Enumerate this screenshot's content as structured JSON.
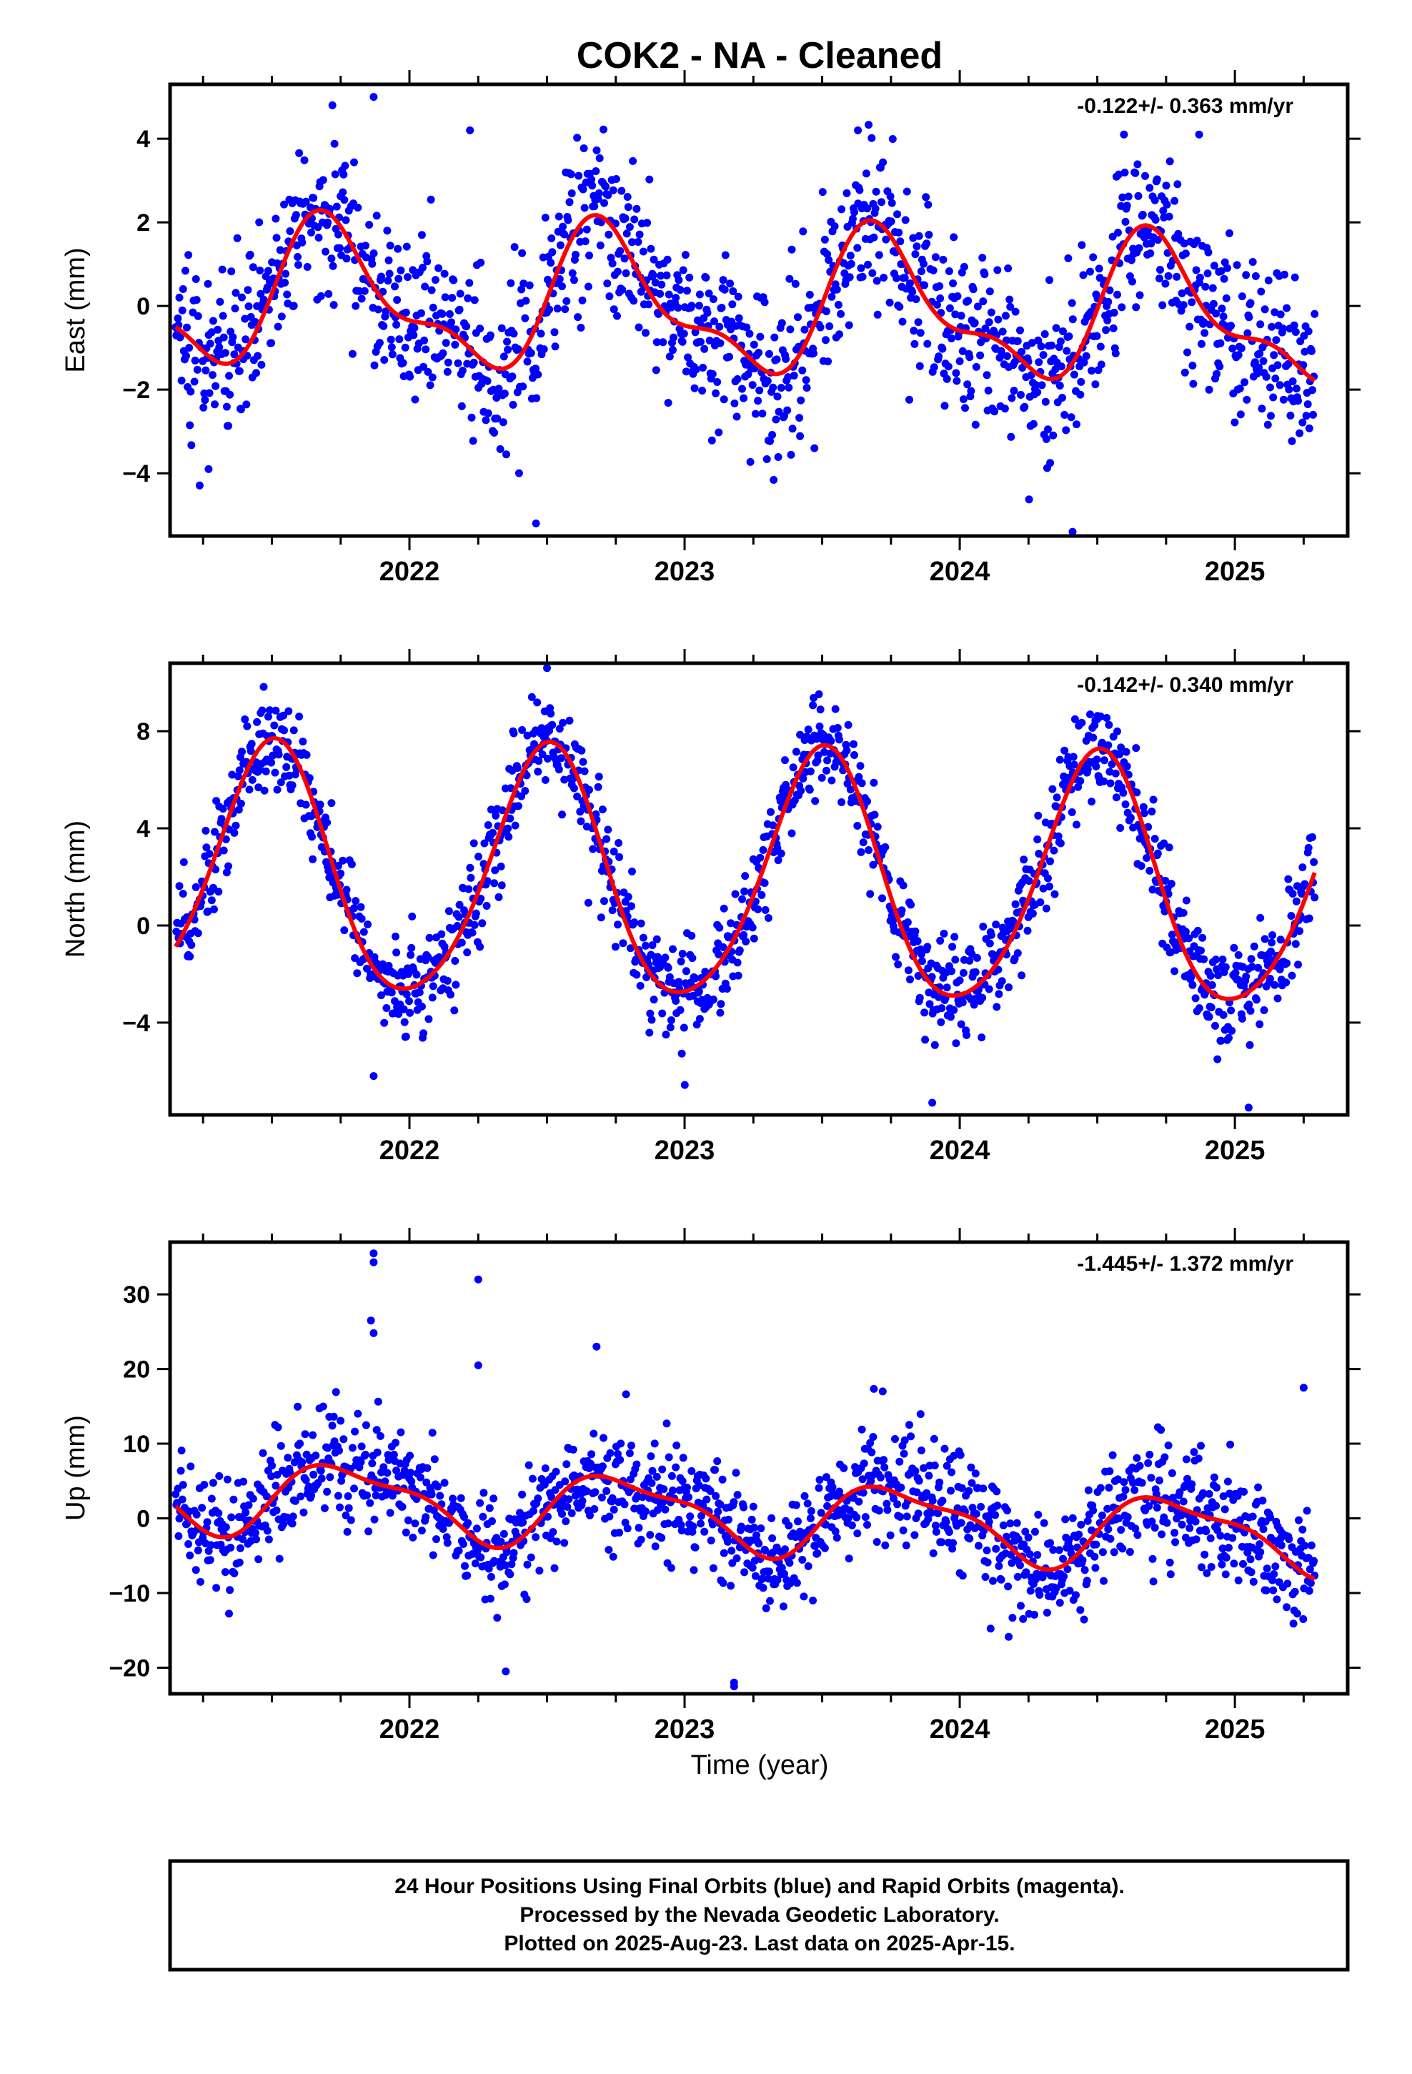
{
  "title": "COK2  - NA - Cleaned",
  "xlabel": "Time (year)",
  "footer": {
    "line1": "24 Hour Positions Using Final Orbits (blue) and Rapid Orbits (magenta).",
    "line2": "Processed by the Nevada Geodetic Laboratory.",
    "line3": "Plotted on 2025-Aug-23. Last data on 2025-Apr-15."
  },
  "colors": {
    "points": "#0000ff",
    "fit": "#ff0000",
    "frame": "#000000"
  },
  "chart_data": [
    {
      "type": "scatter",
      "component": "east",
      "ylabel": "East (mm)",
      "rate_label": "-0.122+/- 0.363 mm/yr",
      "xlim": [
        2021.13,
        2025.41
      ],
      "ylim": [
        -5.5,
        5.3
      ],
      "yticks": [
        -4,
        -2,
        0,
        2,
        4
      ],
      "xticks": [
        2022,
        2023,
        2024,
        2025
      ],
      "data_range": [
        2021.15,
        2025.29
      ],
      "seasonal_fit": {
        "offset": 0.0,
        "annual_amp": 1.55,
        "annual_phase_peak": 0.72,
        "semiannual_amp": 0.65,
        "semiannual_phase_peak": 0.15,
        "trend": -0.122
      },
      "scatter_sd": 1.0,
      "outliers": [
        [
          2021.72,
          4.8
        ],
        [
          2021.87,
          5.0
        ],
        [
          2022.22,
          4.2
        ],
        [
          2022.46,
          -5.2
        ],
        [
          2023.63,
          4.2
        ],
        [
          2024.41,
          -5.4
        ],
        [
          2024.87,
          4.1
        ],
        [
          2021.27,
          -3.9
        ]
      ]
    },
    {
      "type": "scatter",
      "component": "north",
      "ylabel": "North (mm)",
      "rate_label": "-0.142+/- 0.340 mm/yr",
      "xlim": [
        2021.13,
        2025.41
      ],
      "ylim": [
        -7.8,
        10.8
      ],
      "yticks": [
        -4,
        0,
        4,
        8
      ],
      "xticks": [
        2022,
        2023,
        2024,
        2025
      ],
      "data_range": [
        2021.15,
        2025.29
      ],
      "seasonal_fit": {
        "offset": 1.8,
        "annual_amp": 5.1,
        "annual_phase_peak": 0.5,
        "semiannual_amp": 0.6,
        "semiannual_phase_peak": 0.03,
        "trend": -0.142
      },
      "scatter_sd": 1.0,
      "outliers": [
        [
          2022.5,
          10.6
        ],
        [
          2021.87,
          -6.2
        ],
        [
          2023.9,
          -7.3
        ],
        [
          2025.05,
          -7.5
        ],
        [
          2024.5,
          8.5
        ]
      ]
    },
    {
      "type": "scatter",
      "component": "up",
      "ylabel": "Up (mm)",
      "rate_label": "-1.445+/- 1.372 mm/yr",
      "xlim": [
        2021.13,
        2025.41
      ],
      "ylim": [
        -23.5,
        37.0
      ],
      "yticks": [
        -20,
        -10,
        0,
        10,
        20,
        30
      ],
      "xticks": [
        2022,
        2023,
        2024,
        2025
      ],
      "data_range": [
        2021.15,
        2025.29
      ],
      "seasonal_fit": {
        "offset": 0.5,
        "annual_amp": 4.5,
        "annual_phase_peak": 0.78,
        "semiannual_amp": 1.5,
        "semiannual_phase_peak": 0.1,
        "trend": -1.445
      },
      "scatter_sd": 3.8,
      "outliers": [
        [
          2021.87,
          35.5
        ],
        [
          2021.87,
          34.3
        ],
        [
          2021.86,
          26.5
        ],
        [
          2021.87,
          24.8
        ],
        [
          2022.25,
          32.0
        ],
        [
          2022.25,
          20.5
        ],
        [
          2022.68,
          23.0
        ],
        [
          2022.35,
          -20.5
        ],
        [
          2023.18,
          -22.0
        ],
        [
          2023.18,
          -22.5
        ],
        [
          2025.25,
          17.5
        ],
        [
          2023.72,
          17.0
        ]
      ]
    }
  ]
}
